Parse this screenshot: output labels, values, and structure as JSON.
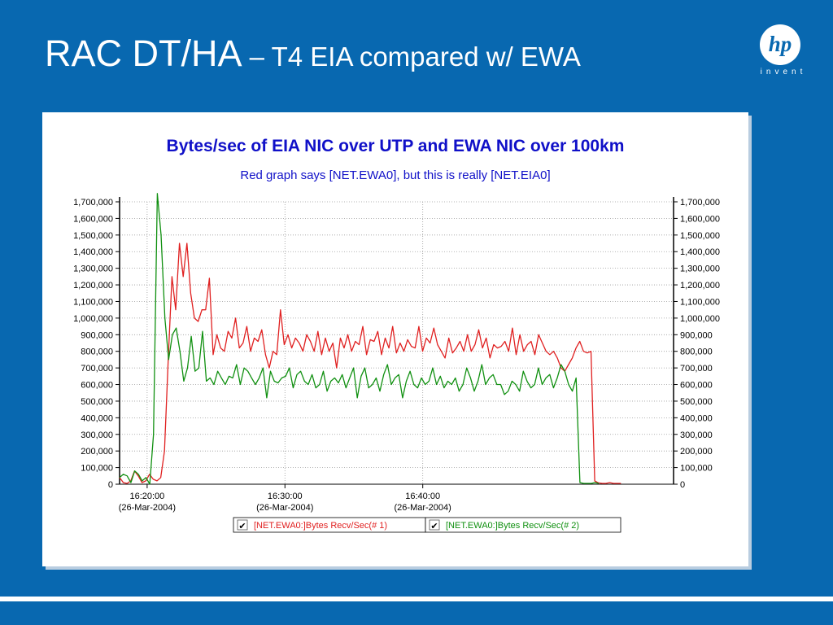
{
  "slide": {
    "title_main": "RAC DT/HA",
    "title_sub": " – T4 EIA compared w/ EWA"
  },
  "logo": {
    "mark": "hp",
    "tagline": "invent"
  },
  "chart_data": {
    "type": "line",
    "title": "Bytes/sec of EIA NIC over UTP and EWA NIC over 100km",
    "subtitle": "Red graph says [NET.EWA0], but this is really [NET.EIA0]",
    "title_color": "#1010c8",
    "xlabel": "",
    "ylabel": "",
    "ylim": [
      0,
      1700000
    ],
    "y_ticks": [
      0,
      100000,
      200000,
      300000,
      400000,
      500000,
      600000,
      700000,
      800000,
      900000,
      1000000,
      1100000,
      1200000,
      1300000,
      1400000,
      1500000,
      1600000,
      1700000
    ],
    "y_tick_labels": [
      "0",
      "100,000",
      "200,000",
      "300,000",
      "400,000",
      "500,000",
      "600,000",
      "700,000",
      "800,000",
      "900,000",
      "1,000,000",
      "1,100,000",
      "1,200,000",
      "1,300,000",
      "1,400,000",
      "1,500,000",
      "1,600,000",
      "1,700,000"
    ],
    "y_axis_sides": "both",
    "x_range_minutes": [
      16.3,
      16.97
    ],
    "x_ticks": [
      {
        "t": "16:20:00",
        "date": "(26-Mar-2004)"
      },
      {
        "t": "16:30:00",
        "date": "(26-Mar-2004)"
      },
      {
        "t": "16:40:00",
        "date": "(26-Mar-2004)"
      }
    ],
    "grid": true,
    "legend_position": "bottom",
    "series": [
      {
        "name": "[NET.EWA0:]Bytes Recv/Sec(# 1)",
        "color": "#e02020",
        "values": [
          40000,
          10000,
          5000,
          20000,
          80000,
          50000,
          10000,
          20000,
          60000,
          30000,
          20000,
          40000,
          200000,
          750000,
          1250000,
          1050000,
          1450000,
          1250000,
          1450000,
          1150000,
          1000000,
          980000,
          1050000,
          1050000,
          1240000,
          780000,
          900000,
          820000,
          800000,
          920000,
          880000,
          1000000,
          820000,
          850000,
          950000,
          800000,
          880000,
          860000,
          930000,
          780000,
          700000,
          800000,
          780000,
          1050000,
          840000,
          900000,
          820000,
          880000,
          850000,
          800000,
          900000,
          860000,
          800000,
          920000,
          780000,
          880000,
          800000,
          850000,
          700000,
          880000,
          820000,
          900000,
          800000,
          860000,
          840000,
          950000,
          780000,
          870000,
          860000,
          920000,
          780000,
          880000,
          820000,
          950000,
          790000,
          850000,
          800000,
          870000,
          830000,
          820000,
          950000,
          800000,
          880000,
          850000,
          940000,
          840000,
          800000,
          760000,
          880000,
          790000,
          820000,
          860000,
          800000,
          900000,
          800000,
          840000,
          930000,
          820000,
          880000,
          760000,
          840000,
          820000,
          830000,
          860000,
          800000,
          940000,
          780000,
          900000,
          800000,
          840000,
          860000,
          780000,
          900000,
          850000,
          800000,
          780000,
          800000,
          760000,
          700000,
          680000,
          720000,
          760000,
          820000,
          860000,
          800000,
          790000,
          800000,
          20000,
          8000,
          5000,
          5000,
          10000,
          5000,
          5000,
          5000
        ],
        "x_start": 16.2,
        "x_end": 16.97
      },
      {
        "name": "[NET.EWA0:]Bytes Recv/Sec(# 2)",
        "color": "#109010",
        "values": [
          40000,
          60000,
          50000,
          10000,
          80000,
          60000,
          20000,
          40000,
          0,
          300000,
          1750000,
          1500000,
          1000000,
          750000,
          900000,
          940000,
          800000,
          620000,
          700000,
          890000,
          680000,
          700000,
          920000,
          620000,
          640000,
          600000,
          680000,
          640000,
          600000,
          650000,
          640000,
          720000,
          600000,
          700000,
          680000,
          640000,
          600000,
          640000,
          700000,
          520000,
          680000,
          620000,
          610000,
          640000,
          650000,
          700000,
          580000,
          660000,
          680000,
          620000,
          600000,
          660000,
          580000,
          600000,
          680000,
          560000,
          620000,
          640000,
          610000,
          660000,
          580000,
          640000,
          700000,
          520000,
          650000,
          700000,
          580000,
          600000,
          640000,
          560000,
          660000,
          720000,
          600000,
          640000,
          660000,
          520000,
          620000,
          680000,
          600000,
          580000,
          640000,
          600000,
          620000,
          700000,
          600000,
          650000,
          580000,
          620000,
          600000,
          640000,
          560000,
          600000,
          700000,
          640000,
          560000,
          620000,
          720000,
          600000,
          640000,
          660000,
          600000,
          600000,
          540000,
          560000,
          620000,
          600000,
          560000,
          680000,
          620000,
          580000,
          600000,
          700000,
          600000,
          640000,
          660000,
          580000,
          640000,
          720000,
          680000,
          600000,
          560000,
          640000,
          10000,
          5000,
          5000,
          5000,
          10000,
          5000
        ],
        "x_start": 16.2,
        "x_end": 16.91
      }
    ]
  }
}
